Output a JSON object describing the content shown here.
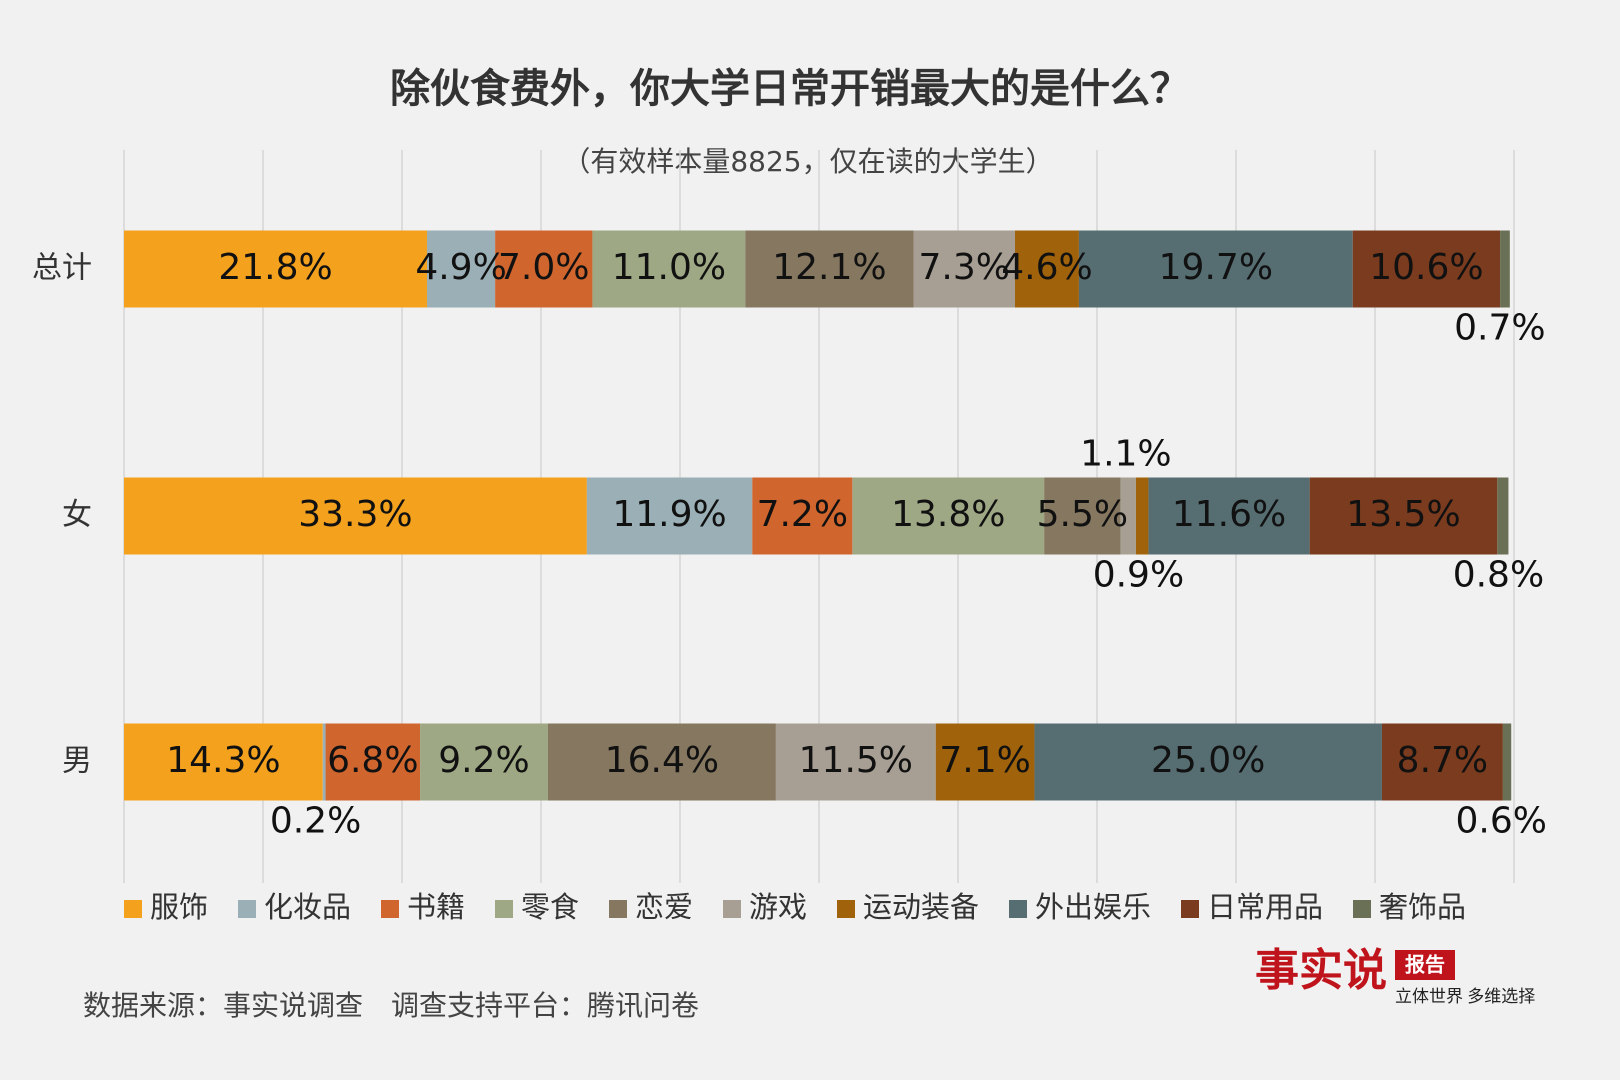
{
  "chart_data": {
    "type": "stacked-bar-horizontal",
    "title": "除伙食费外，你大学日常开销最大的是什么？",
    "subtitle": "（有效样本量8825，仅在读的大学生）",
    "categories": [
      "总计",
      "女",
      "男"
    ],
    "xlim": [
      0,
      100
    ],
    "xticks": [
      0,
      10,
      20,
      30,
      40,
      50,
      60,
      70,
      80,
      90,
      100
    ],
    "grid": true,
    "legend": "bottom",
    "series": [
      {
        "name": "服饰",
        "color": "#f4a11e",
        "values": [
          21.8,
          33.3,
          14.3
        ],
        "value_labels": [
          "21.8%",
          "33.3%",
          "14.3%"
        ]
      },
      {
        "name": "化妆品",
        "color": "#9bb0b6",
        "values": [
          4.9,
          11.9,
          0.2
        ],
        "value_labels": [
          "4.9%",
          "11.9%",
          "0.2%"
        ]
      },
      {
        "name": "书籍",
        "color": "#d0652e",
        "values": [
          7.0,
          7.2,
          6.8
        ],
        "value_labels": [
          "7.0%",
          "7.2%",
          "6.8%"
        ]
      },
      {
        "name": "零食",
        "color": "#9ea884",
        "values": [
          11.0,
          13.8,
          9.2
        ],
        "value_labels": [
          "11.0%",
          "13.8%",
          "9.2%"
        ]
      },
      {
        "name": "恋爱",
        "color": "#857760",
        "values": [
          12.1,
          5.5,
          16.4
        ],
        "value_labels": [
          "12.1%",
          "5.5%",
          "16.4%"
        ]
      },
      {
        "name": "游戏",
        "color": "#a89f94",
        "values": [
          7.3,
          1.1,
          11.5
        ],
        "value_labels": [
          "7.3%",
          "1.1%",
          "11.5%"
        ]
      },
      {
        "name": "运动装备",
        "color": "#a0620a",
        "values": [
          4.6,
          0.9,
          7.1
        ],
        "value_labels": [
          "4.6%",
          "0.9%",
          "7.1%"
        ]
      },
      {
        "name": "外出娱乐",
        "color": "#566e72",
        "values": [
          19.7,
          11.6,
          25.0
        ],
        "value_labels": [
          "19.7%",
          "11.6%",
          "25.0%"
        ]
      },
      {
        "name": "日常用品",
        "color": "#7a3b1e",
        "values": [
          10.6,
          13.5,
          8.7
        ],
        "value_labels": [
          "10.6%",
          "13.5%",
          "8.7%"
        ]
      },
      {
        "name": "奢饰品",
        "color": "#6a7056",
        "values": [
          0.7,
          0.8,
          0.6
        ],
        "value_labels": [
          "0.7%",
          "0.8%",
          "0.6%"
        ]
      }
    ]
  },
  "footer": "数据来源：事实说调查　调查支持平台：腾讯问卷",
  "logo": {
    "name": "事实说",
    "badge": "报告",
    "slogan": "立体世界 多维选择"
  }
}
